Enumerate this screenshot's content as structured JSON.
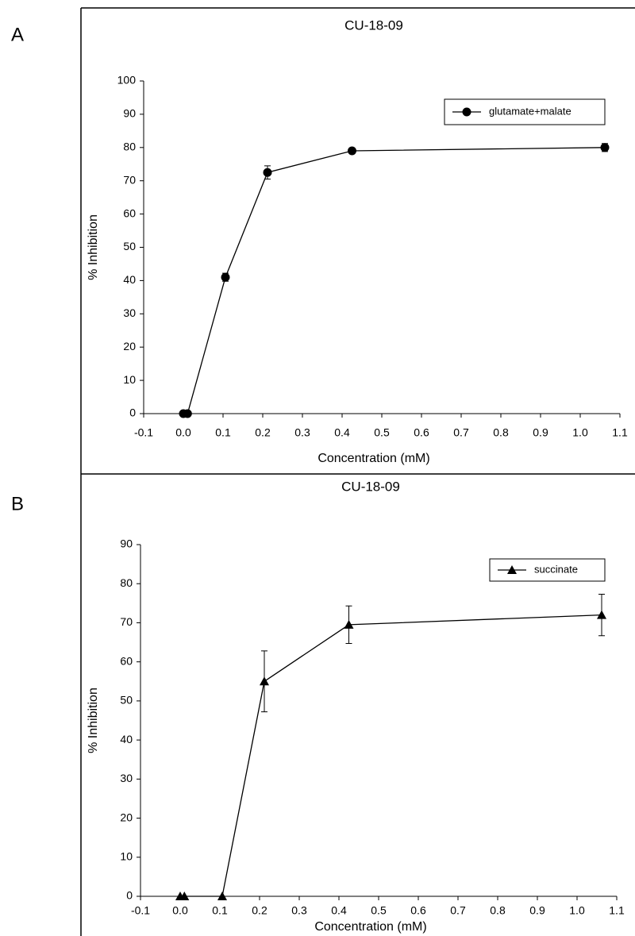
{
  "chart_data": [
    {
      "type": "line",
      "panel_label": "A",
      "title": "CU-18-09",
      "x_label": "Concentration (mM)",
      "y_label": "% Inhibition",
      "x": [
        0,
        0.0106,
        0.106,
        0.212,
        0.425,
        1.062
      ],
      "series": [
        {
          "name": "glutamate+malate",
          "color": "#000000",
          "marker": "circle",
          "values": [
            0,
            0,
            41,
            72.5,
            79,
            80
          ],
          "errors": [
            0,
            0,
            1.2,
            2,
            0.8,
            1.2
          ]
        }
      ],
      "xlim": [
        -0.1,
        1.1
      ],
      "xticks": [
        -0.1,
        {
          "value": 0,
          "label": "0.0"
        },
        0.1,
        0.2,
        0.3,
        0.4,
        0.5,
        0.6,
        0.7,
        0.8,
        0.9,
        {
          "value": 1,
          "label": "1.0"
        },
        1.1
      ],
      "ylim": [
        0,
        100
      ],
      "yticks": [
        0,
        10,
        20,
        30,
        40,
        50,
        60,
        70,
        80,
        90,
        100
      ],
      "legend": "upper right"
    },
    {
      "type": "line",
      "panel_label": "B",
      "title": "CU-18-09",
      "x_label": "Concentration (mM)",
      "y_label": "% Inhibition",
      "x": [
        0,
        0.0106,
        0.106,
        0.212,
        0.425,
        1.062
      ],
      "series": [
        {
          "name": "succinate",
          "color": "#000000",
          "marker": "triangle",
          "values": [
            0,
            0,
            0,
            55,
            69.5,
            72
          ],
          "errors": [
            0,
            0,
            0,
            7.8,
            4.8,
            5.3
          ]
        }
      ],
      "xlim": [
        -0.1,
        1.1
      ],
      "xticks": [
        -0.1,
        {
          "value": 0,
          "label": "0.0"
        },
        0.1,
        0.2,
        0.3,
        0.4,
        0.5,
        0.6,
        0.7,
        0.8,
        0.9,
        {
          "value": 1,
          "label": "1.0"
        },
        1.1
      ],
      "ylim": [
        0,
        90
      ],
      "yticks": [
        0,
        10,
        20,
        30,
        40,
        50,
        60,
        70,
        80,
        90
      ],
      "legend": "upper right"
    }
  ]
}
